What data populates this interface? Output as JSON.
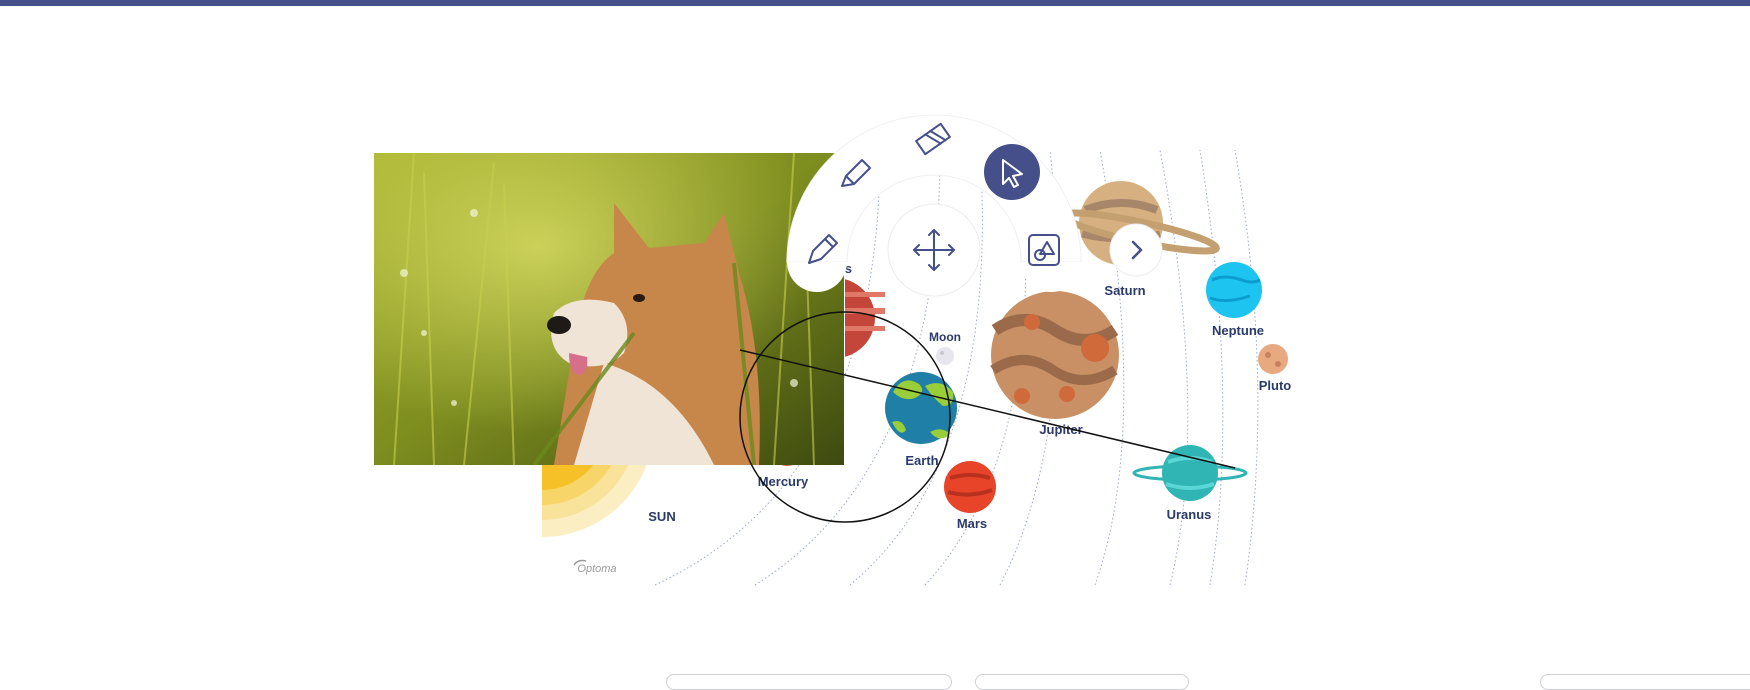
{
  "colors": {
    "accent": "#45508a",
    "label": "#2a3a6a",
    "orbit": "#9aa8d6"
  },
  "canvas": {
    "sun_label": "SUN",
    "logo_text": "Optoma",
    "planets": [
      {
        "key": "mercury",
        "label": "Mercury"
      },
      {
        "key": "venus",
        "label": "Venus"
      },
      {
        "key": "earth",
        "label": "Earth"
      },
      {
        "key": "moon",
        "label": "Moon"
      },
      {
        "key": "mars",
        "label": "Mars"
      },
      {
        "key": "jupiter",
        "label": "Jupiter"
      },
      {
        "key": "saturn",
        "label": "Saturn"
      },
      {
        "key": "uranus",
        "label": "Uranus"
      },
      {
        "key": "neptune",
        "label": "Neptune"
      },
      {
        "key": "pluto",
        "label": "Pluto"
      }
    ]
  },
  "tool_menu": {
    "tools": [
      {
        "name": "pen-tool",
        "icon": "pencil-icon"
      },
      {
        "name": "highlighter-tool",
        "icon": "highlighter-icon"
      },
      {
        "name": "eraser-tool",
        "icon": "eraser-icon"
      },
      {
        "name": "select-tool",
        "icon": "cursor-icon",
        "selected": true
      },
      {
        "name": "shapes-tool",
        "icon": "shapes-icon"
      },
      {
        "name": "move-tool",
        "icon": "move-arrows-icon"
      },
      {
        "name": "next-tool",
        "icon": "chevron-right-icon"
      }
    ]
  },
  "overlay_photo": {
    "subject": "shiba-inu-dog-photo"
  }
}
